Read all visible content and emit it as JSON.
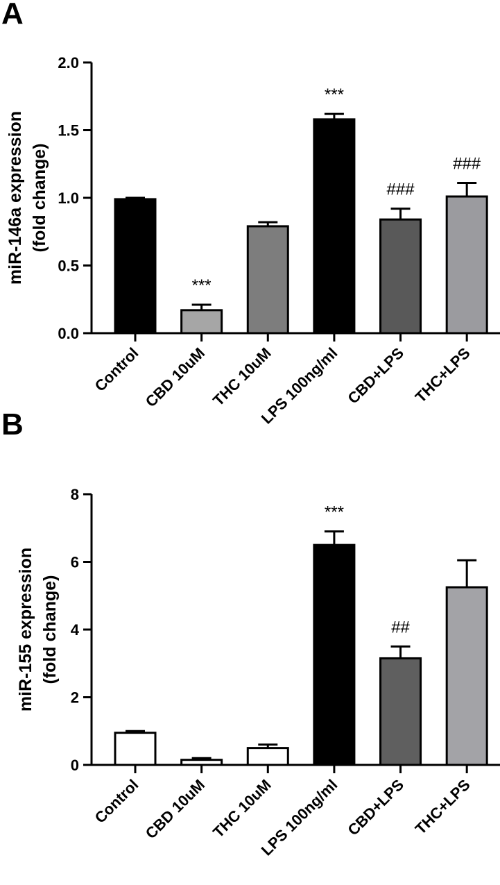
{
  "chart_data": [
    {
      "type": "bar",
      "panel": "A",
      "ylabel": [
        "miR-146a expression",
        "(fold change)"
      ],
      "ylim": [
        0,
        2.0
      ],
      "yticks": [
        "0.0",
        "0.5",
        "1.0",
        "1.5",
        "2.0"
      ],
      "ytick_values": [
        0,
        0.5,
        1.0,
        1.5,
        2.0
      ],
      "categories": [
        "Control",
        "CBD 10uM",
        "THC 10uM",
        "LPS 100ng/ml",
        "CBD+LPS",
        "THC+LPS"
      ],
      "values": [
        0.99,
        0.17,
        0.79,
        1.58,
        0.84,
        1.01
      ],
      "errors": [
        0.01,
        0.04,
        0.03,
        0.04,
        0.08,
        0.1
      ],
      "colors": [
        "#000000",
        "#a6a6a6",
        "#7d7d7d",
        "#000000",
        "#595959",
        "#9b9b9f"
      ],
      "significance": [
        "",
        "***",
        "",
        "***",
        "###",
        "###"
      ]
    },
    {
      "type": "bar",
      "panel": "B",
      "ylabel": [
        "miR-155 expression",
        "(fold change)"
      ],
      "ylim": [
        0,
        8
      ],
      "yticks": [
        "0",
        "2",
        "4",
        "6",
        "8"
      ],
      "ytick_values": [
        0,
        2,
        4,
        6,
        8
      ],
      "categories": [
        "Control",
        "CBD 10uM",
        "THC 10uM",
        "LPS 100ng/ml",
        "CBD+LPS",
        "THC+LPS"
      ],
      "values": [
        0.95,
        0.15,
        0.5,
        6.5,
        3.15,
        5.25
      ],
      "errors": [
        0.05,
        0.05,
        0.1,
        0.4,
        0.35,
        0.8
      ],
      "colors": [
        "#ffffff",
        "#ffffff",
        "#ffffff",
        "#000000",
        "#5f5f5f",
        "#a3a3a7"
      ],
      "significance": [
        "",
        "",
        "",
        "***",
        "##",
        ""
      ]
    }
  ]
}
